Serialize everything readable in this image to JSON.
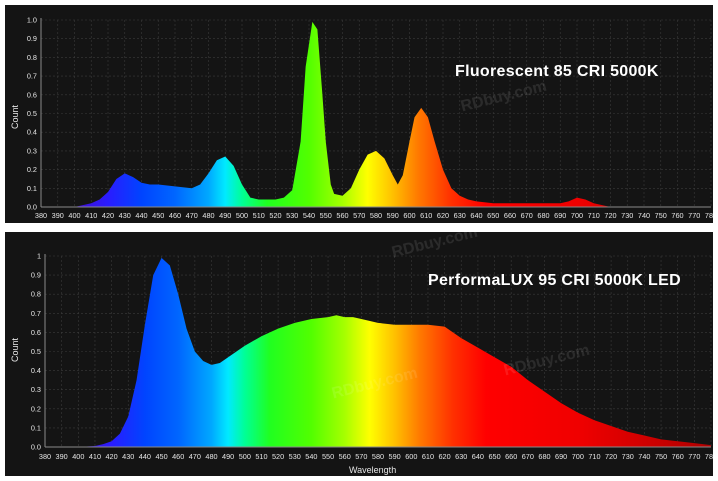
{
  "watermark": "RDbuy.com",
  "chart_data": [
    {
      "type": "area",
      "title": "Fluorescent 85 CRI 5000K",
      "xlabel": "",
      "ylabel": "Count",
      "xlim": [
        380,
        780
      ],
      "ylim": [
        0,
        1.0
      ],
      "grid": true,
      "x_ticks": [
        380,
        390,
        400,
        410,
        420,
        430,
        440,
        450,
        460,
        470,
        480,
        490,
        500,
        510,
        520,
        530,
        540,
        550,
        560,
        570,
        580,
        590,
        600,
        610,
        620,
        630,
        640,
        650,
        660,
        670,
        680,
        690,
        700,
        710,
        720,
        730,
        740,
        750,
        760,
        770,
        780
      ],
      "y_ticks": [
        0.0,
        0.1,
        0.2,
        0.3,
        0.4,
        0.5,
        0.6,
        0.7,
        0.8,
        0.9,
        1.0
      ],
      "y_tick_labels": [
        "0.0",
        "0.1",
        "0.2",
        "0.3",
        "0.4",
        "0.5",
        "0.6",
        "0.7",
        "0.8",
        "0.9",
        "1.0"
      ],
      "x": [
        380,
        390,
        400,
        405,
        410,
        415,
        420,
        425,
        430,
        435,
        440,
        445,
        450,
        460,
        470,
        475,
        480,
        485,
        490,
        495,
        500,
        505,
        510,
        515,
        520,
        525,
        530,
        535,
        538,
        542,
        545,
        548,
        550,
        553,
        555,
        560,
        565,
        570,
        575,
        580,
        585,
        590,
        593,
        596,
        600,
        603,
        607,
        611,
        615,
        620,
        625,
        630,
        635,
        640,
        650,
        660,
        670,
        680,
        690,
        695,
        700,
        705,
        710,
        715,
        720,
        730,
        780
      ],
      "y": [
        0,
        0,
        0,
        0.01,
        0.02,
        0.04,
        0.08,
        0.15,
        0.18,
        0.16,
        0.13,
        0.12,
        0.12,
        0.11,
        0.1,
        0.12,
        0.18,
        0.25,
        0.27,
        0.22,
        0.12,
        0.05,
        0.04,
        0.04,
        0.04,
        0.05,
        0.09,
        0.35,
        0.75,
        0.99,
        0.95,
        0.6,
        0.35,
        0.12,
        0.07,
        0.06,
        0.1,
        0.2,
        0.28,
        0.3,
        0.26,
        0.17,
        0.12,
        0.17,
        0.35,
        0.48,
        0.53,
        0.48,
        0.35,
        0.2,
        0.1,
        0.06,
        0.04,
        0.03,
        0.02,
        0.02,
        0.02,
        0.02,
        0.02,
        0.03,
        0.05,
        0.04,
        0.02,
        0.01,
        0,
        0,
        0
      ]
    },
    {
      "type": "area",
      "title": "PerformaLUX 95 CRI 5000K LED",
      "xlabel": "Wavelength",
      "ylabel": "Count",
      "xlim": [
        380,
        780
      ],
      "ylim": [
        0,
        1.0
      ],
      "grid": true,
      "x_ticks": [
        380,
        390,
        400,
        410,
        420,
        430,
        440,
        450,
        460,
        470,
        480,
        490,
        500,
        510,
        520,
        530,
        540,
        550,
        560,
        570,
        580,
        590,
        600,
        610,
        620,
        630,
        640,
        650,
        660,
        670,
        680,
        690,
        700,
        710,
        720,
        730,
        740,
        750,
        760,
        770,
        780
      ],
      "y_ticks": [
        0.0,
        0.1,
        0.2,
        0.3,
        0.4,
        0.5,
        0.6,
        0.7,
        0.8,
        0.9,
        1.0
      ],
      "y_tick_labels": [
        "0.0",
        "0.1",
        "0.2",
        "0.3",
        "0.4",
        "0.5",
        "0.6",
        "0.7",
        "0.8",
        "0.9",
        "1"
      ],
      "x": [
        380,
        390,
        400,
        410,
        415,
        420,
        425,
        430,
        435,
        440,
        445,
        450,
        455,
        460,
        465,
        470,
        475,
        480,
        485,
        490,
        500,
        510,
        520,
        530,
        540,
        550,
        555,
        560,
        565,
        570,
        580,
        590,
        600,
        610,
        620,
        630,
        640,
        650,
        660,
        670,
        680,
        690,
        700,
        710,
        720,
        730,
        740,
        750,
        760,
        770,
        780
      ],
      "y": [
        0,
        0,
        0,
        0.005,
        0.015,
        0.03,
        0.07,
        0.16,
        0.35,
        0.64,
        0.9,
        0.99,
        0.95,
        0.8,
        0.62,
        0.5,
        0.45,
        0.43,
        0.44,
        0.47,
        0.53,
        0.58,
        0.62,
        0.65,
        0.67,
        0.68,
        0.69,
        0.68,
        0.68,
        0.67,
        0.65,
        0.64,
        0.64,
        0.64,
        0.63,
        0.57,
        0.52,
        0.47,
        0.42,
        0.35,
        0.29,
        0.23,
        0.18,
        0.14,
        0.11,
        0.08,
        0.06,
        0.04,
        0.03,
        0.02,
        0.01
      ]
    }
  ]
}
